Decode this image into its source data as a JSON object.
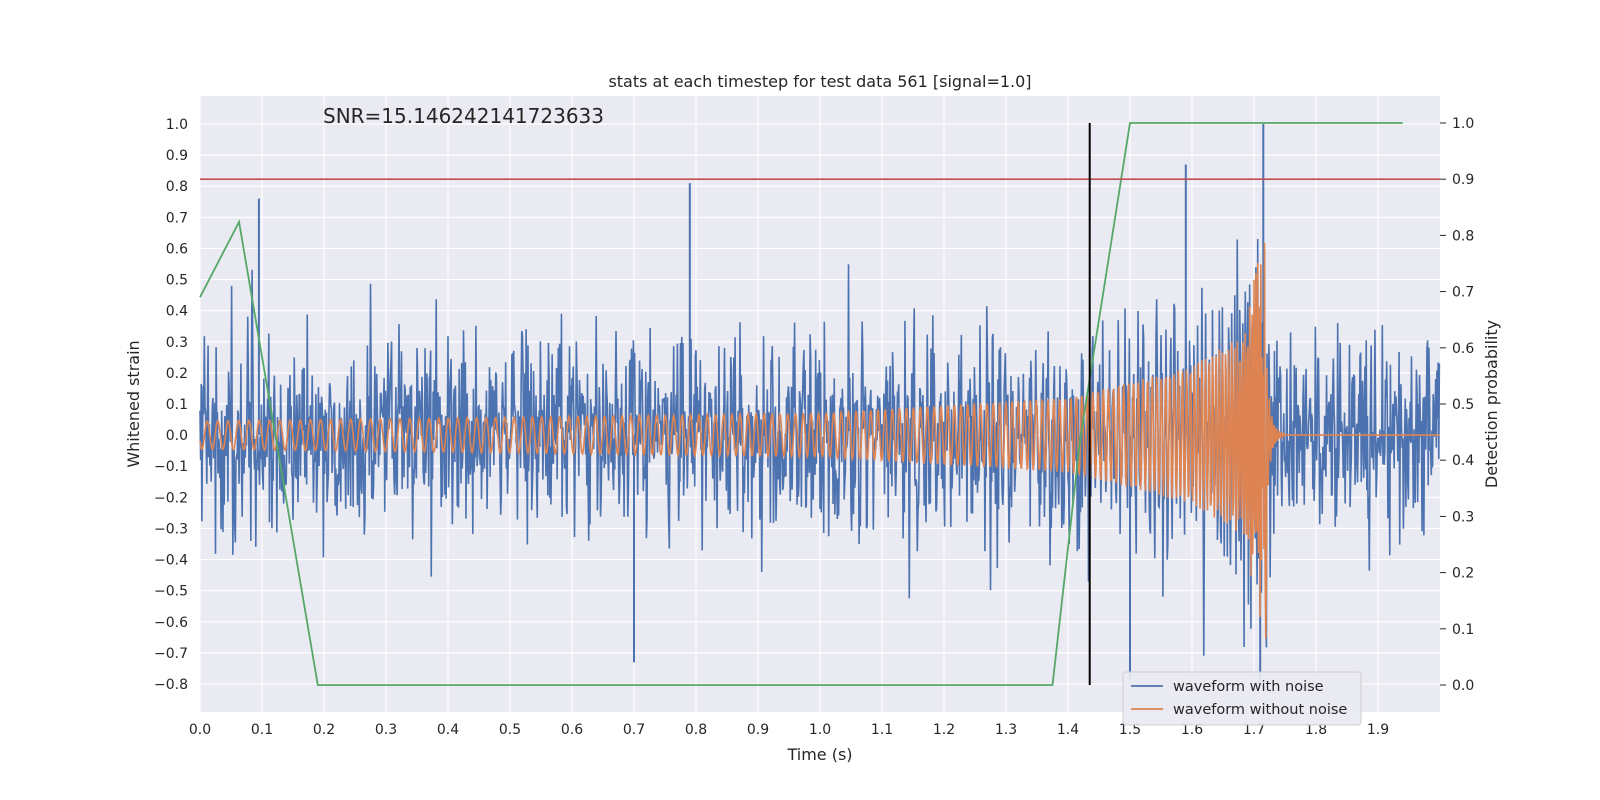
{
  "chart_data": {
    "type": "line",
    "title": "stats at each timestep for test data 561 [signal=1.0]",
    "xlabel": "Time (s)",
    "ylabel": "Whitened strain",
    "y2label": "Detection probability",
    "annotation": "SNR=15.146242141723633",
    "xlim": [
      0.0,
      2.0
    ],
    "ylim": [
      -0.89,
      1.09
    ],
    "y2lim": [
      -0.048,
      1.048
    ],
    "xticks": [
      "0.0",
      "0.1",
      "0.2",
      "0.3",
      "0.4",
      "0.5",
      "0.6",
      "0.7",
      "0.8",
      "0.9",
      "1.0",
      "1.1",
      "1.2",
      "1.3",
      "1.4",
      "1.5",
      "1.6",
      "1.7",
      "1.8",
      "1.9"
    ],
    "yticks": [
      "1.0",
      "0.9",
      "0.8",
      "0.7",
      "0.6",
      "0.5",
      "0.4",
      "0.3",
      "0.2",
      "0.1",
      "0.0",
      "−0.1",
      "−0.2",
      "−0.3",
      "−0.4",
      "−0.5",
      "−0.6",
      "−0.7",
      "−0.8"
    ],
    "y2ticks": [
      "1.0",
      "0.9",
      "0.8",
      "0.7",
      "0.6",
      "0.5",
      "0.4",
      "0.3",
      "0.2",
      "0.1",
      "0.0"
    ],
    "grid": true,
    "legend_position": "lower-right",
    "colors": {
      "background": "#eaeaf2",
      "grid": "#ffffff",
      "noisy": "#4c72b0",
      "clean": "#dd8452",
      "probability": "#55a868",
      "threshold": "#c44e52",
      "marker": "#000000"
    },
    "series": [
      {
        "name": "waveform with noise",
        "kind": "noise",
        "noise_std": 0.15,
        "spikes": [
          [
            0.095,
            0.76
          ],
          [
            0.79,
            0.81
          ],
          [
            1.59,
            0.87
          ],
          [
            1.715,
            1.0
          ],
          [
            0.7,
            -0.73
          ],
          [
            1.5,
            -0.79
          ],
          [
            1.71,
            -0.8
          ]
        ]
      },
      {
        "name": "waveform without noise",
        "kind": "chirp",
        "chirp_end": 1.72,
        "amplitude_envelope": [
          [
            0.0,
            0.045
          ],
          [
            1.0,
            0.07
          ],
          [
            1.4,
            0.12
          ],
          [
            1.6,
            0.22
          ],
          [
            1.68,
            0.32
          ],
          [
            1.72,
            0.68
          ]
        ]
      },
      {
        "name": "detection probability",
        "axis": "right",
        "x": [
          0.0,
          0.063,
          0.19,
          0.25,
          1.375,
          1.42,
          1.5,
          1.94
        ],
        "values": [
          0.69,
          0.824,
          0.0,
          0.0,
          0.0,
          0.44,
          1.0,
          1.0
        ]
      }
    ],
    "threshold_y2": 0.9,
    "marker_x": 1.435,
    "marker_y2_range": [
      0.0,
      1.0
    ]
  }
}
